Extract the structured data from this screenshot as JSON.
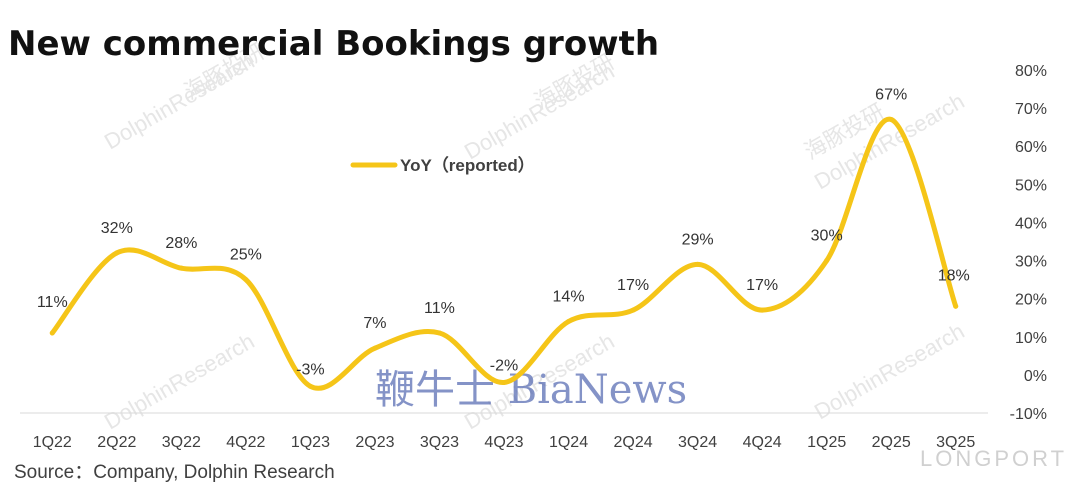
{
  "chart_data": {
    "type": "line",
    "title": "New commercial Bookings growth",
    "categories": [
      "1Q22",
      "2Q22",
      "3Q22",
      "4Q22",
      "1Q23",
      "2Q23",
      "3Q23",
      "4Q23",
      "1Q24",
      "2Q24",
      "3Q24",
      "4Q24",
      "1Q25",
      "2Q25",
      "3Q25"
    ],
    "series": [
      {
        "name": "YoY（reported）",
        "values": [
          11,
          32,
          28,
          25,
          -3,
          7,
          11,
          -2,
          14,
          17,
          29,
          17,
          30,
          67,
          18
        ],
        "labels": [
          "11%",
          "32%",
          "28%",
          "25%",
          "-3%",
          "7%",
          "11%",
          "-2%",
          "14%",
          "17%",
          "29%",
          "17%",
          "30%",
          "67%",
          "18%"
        ],
        "color": "#F5C518"
      }
    ],
    "y_axis": {
      "position": "right",
      "ylim": [
        -10,
        80
      ],
      "ticks": [
        80,
        70,
        60,
        50,
        40,
        30,
        20,
        10,
        0,
        -10
      ],
      "tick_labels": [
        "80%",
        "70%",
        "60%",
        "50%",
        "40%",
        "30%",
        "20%",
        "10%",
        "0%",
        "-10%"
      ]
    },
    "legend_position": "top-left",
    "grid": false,
    "smooth": true
  },
  "source": "Source：Company, Dolphin Research",
  "watermarks": {
    "dolphin": "DolphinResearch",
    "dolphin_cn": "海豚投研",
    "bianews": "鞭牛士 BiaNews",
    "corner": "LONGPORT"
  }
}
